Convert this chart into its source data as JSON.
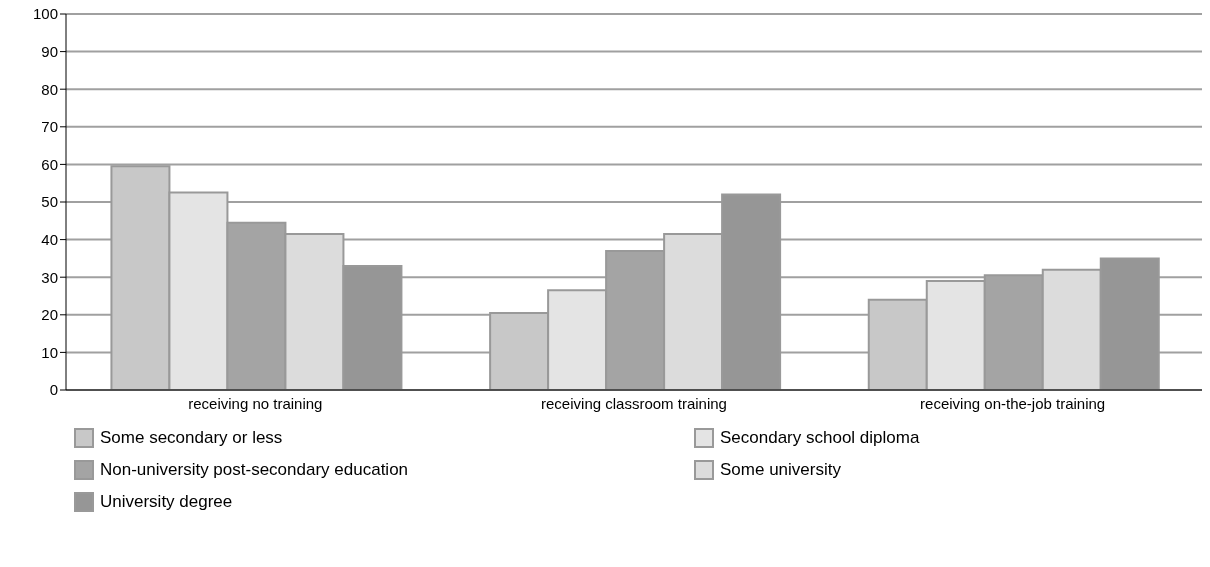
{
  "chart_data": {
    "type": "bar",
    "categories": [
      "receiving no training",
      "receiving classroom training",
      "receiving on-the-job training"
    ],
    "series": [
      {
        "name": "Some secondary or less",
        "color": "#c8c8c8",
        "values": [
          59.5,
          20.5,
          24
        ]
      },
      {
        "name": "Secondary school diploma",
        "color": "#e4e4e4",
        "values": [
          52.5,
          26.5,
          29
        ]
      },
      {
        "name": "Non-university post-secondary education",
        "color": "#a4a4a4",
        "values": [
          44.5,
          37,
          30.5
        ]
      },
      {
        "name": "Some university",
        "color": "#dcdcdc",
        "values": [
          41.5,
          41.5,
          32
        ]
      },
      {
        "name": "University degree",
        "color": "#969696",
        "values": [
          33,
          52,
          35
        ]
      }
    ],
    "ylim": [
      0,
      100
    ],
    "yticks": [
      0,
      10,
      20,
      30,
      40,
      50,
      60,
      70,
      80,
      90,
      100
    ],
    "grid": "y",
    "legend": "bottom"
  }
}
